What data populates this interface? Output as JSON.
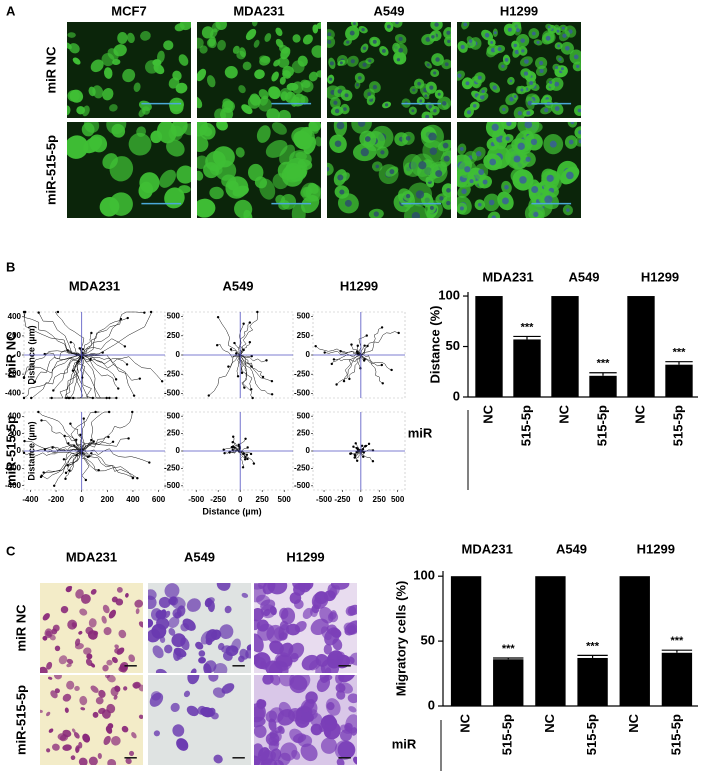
{
  "panel_a": {
    "label": "A",
    "columns": [
      "MCF7",
      "MDA231",
      "A549",
      "H1299"
    ],
    "rows": [
      "miR NC",
      "miR-515-5p"
    ]
  },
  "panel_b": {
    "label": "B",
    "columns": [
      "MDA231",
      "A549",
      "H1299"
    ],
    "rows": [
      "miR NC",
      "miR-515-5p"
    ],
    "ylabel": "Distance (µm)",
    "xlabel": "Distance (µm)",
    "plots": [
      {
        "xlim": [
          -450,
          650
        ],
        "ylim": [
          -450,
          450
        ],
        "xticks": [
          -400,
          -200,
          0,
          200,
          400,
          600
        ],
        "yticks": [
          400,
          200,
          0,
          -200,
          -400
        ]
      },
      {
        "xlim": [
          -650,
          600
        ],
        "ylim": [
          -560,
          560
        ],
        "xticks": [
          -500,
          -250,
          0,
          250,
          500
        ],
        "yticks": [
          500,
          250,
          0,
          -250,
          -500
        ]
      },
      {
        "xlim": [
          -650,
          600
        ],
        "ylim": [
          -560,
          560
        ],
        "xticks": [
          -500,
          -250,
          0,
          250,
          500
        ],
        "yticks": [
          500,
          250,
          0,
          -250,
          -500
        ]
      }
    ]
  },
  "panel_c": {
    "label": "C",
    "columns": [
      "MDA231",
      "A549",
      "H1299"
    ],
    "rows": [
      "miR NC",
      "miR-515-5p"
    ]
  },
  "chart_data": [
    {
      "type": "bar",
      "ylabel": "Distance (%)",
      "axis_title": "miR",
      "groups": [
        "MDA231",
        "A549",
        "H1299"
      ],
      "categories": [
        "NC",
        "515-5p",
        "NC",
        "515-5p",
        "NC",
        "515-5p"
      ],
      "values": [
        100,
        57,
        100,
        21,
        100,
        32
      ],
      "errors": [
        0,
        3,
        0,
        3,
        0,
        3
      ],
      "annotations": [
        null,
        "***",
        null,
        "***",
        null,
        "***"
      ],
      "color": "#000000",
      "ylim": [
        0,
        104
      ],
      "yticks": [
        0,
        50,
        100
      ]
    },
    {
      "type": "bar",
      "ylabel": "Migratory cells (%)",
      "axis_title": "miR",
      "groups": [
        "MDA231",
        "A549",
        "H1299"
      ],
      "categories": [
        "NC",
        "515-5p",
        "NC",
        "515-5p",
        "NC",
        "515-5p"
      ],
      "values": [
        100,
        36,
        100,
        37,
        100,
        41
      ],
      "errors": [
        0,
        1,
        0,
        2,
        0,
        2
      ],
      "annotations": [
        null,
        "***",
        null,
        "***",
        null,
        "***"
      ],
      "color": "#000000",
      "ylim": [
        0,
        104
      ],
      "yticks": [
        0,
        50,
        100
      ]
    }
  ]
}
